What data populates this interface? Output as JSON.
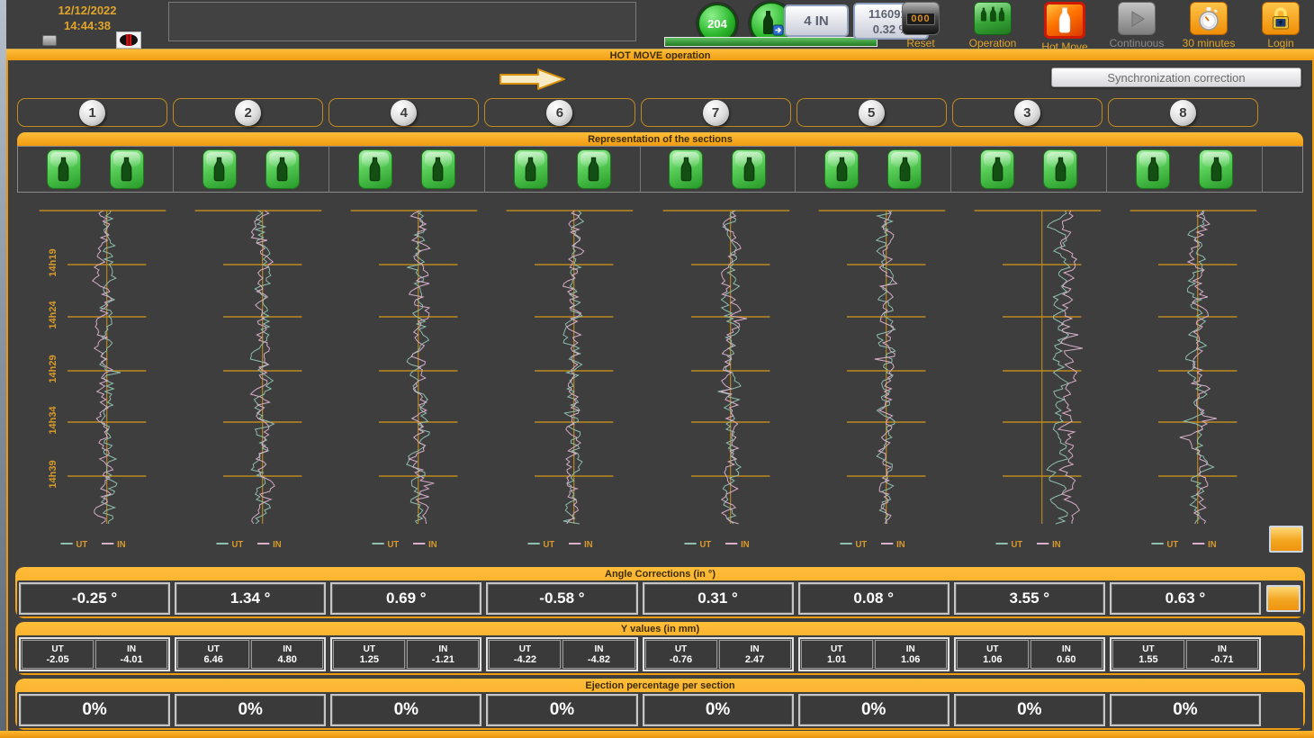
{
  "window_title": "HOT MOVE operation",
  "colors": {
    "orange": "#F2A41E",
    "grid_orange": "#BD8A1E",
    "teal_ut": "#8FBFAE",
    "pink_in": "#D9AECB",
    "label_orange": "#D89A2B"
  },
  "top_bar": {
    "date": "12/12/2022",
    "time": "14:44:38",
    "counter_badge": "204",
    "mode_button": "4 IN",
    "production_count": "1160919",
    "production_pct": "0.32 %",
    "progress_pct": 100,
    "buttons": [
      {
        "id": "reset",
        "label": "Reset",
        "icon": "reset-000-icon",
        "enabled": true
      },
      {
        "id": "operation",
        "label": "Operation",
        "icon": "bottles-icon",
        "enabled": true
      },
      {
        "id": "hot-move",
        "label": "Hot Move",
        "icon": "hot-bottle-icon",
        "enabled": true
      },
      {
        "id": "continuous",
        "label": "Continuous",
        "icon": "play-icon",
        "enabled": false
      },
      {
        "id": "30-minutes",
        "label": "30 minutes",
        "icon": "stopwatch-icon",
        "enabled": true
      },
      {
        "id": "login",
        "label": "Login",
        "icon": "padlock-icon",
        "enabled": true
      }
    ]
  },
  "controls": {
    "sync_button": "Synchronization correction"
  },
  "sections_order": [
    "1",
    "2",
    "4",
    "6",
    "7",
    "5",
    "3",
    "8"
  ],
  "representation": {
    "title": "Representation of the sections",
    "bottles_per_section": 2,
    "bottle_state": "green"
  },
  "charts": {
    "time_labels": [
      "14h19",
      "14h24",
      "14h29",
      "14h34",
      "14h39"
    ],
    "legend": [
      {
        "series": "UT",
        "color": "#8FBFAE"
      },
      {
        "series": "IN",
        "color": "#D9AECB"
      }
    ],
    "trace_offsets": [
      {
        "ut": 2,
        "in": -3
      },
      {
        "ut": 0,
        "in": 0
      },
      {
        "ut": 0,
        "in": 2
      },
      {
        "ut": 0,
        "in": 0
      },
      {
        "ut": 0,
        "in": 1
      },
      {
        "ut": 0,
        "in": 0
      },
      {
        "ut": 20,
        "in": 31
      },
      {
        "ut": 0,
        "in": 2
      }
    ]
  },
  "angle_corrections": {
    "title": "Angle Corrections (in °)",
    "values": [
      "-0.25 °",
      "1.34 °",
      "0.69 °",
      "-0.58 °",
      "0.31 °",
      "0.08 °",
      "3.55 °",
      "0.63 °"
    ]
  },
  "y_values": {
    "title": "Y values (in mm)",
    "labels": {
      "ut": "UT",
      "in": "IN"
    },
    "values": [
      {
        "ut": "-2.05",
        "in": "-4.01"
      },
      {
        "ut": "6.46",
        "in": "4.80"
      },
      {
        "ut": "1.25",
        "in": "-1.21"
      },
      {
        "ut": "-4.22",
        "in": "-4.82"
      },
      {
        "ut": "-0.76",
        "in": "2.47"
      },
      {
        "ut": "1.01",
        "in": "1.06"
      },
      {
        "ut": "1.06",
        "in": "0.60"
      },
      {
        "ut": "1.55",
        "in": "-0.71"
      }
    ]
  },
  "ejection": {
    "title": "Ejection percentage per section",
    "values": [
      "0%",
      "0%",
      "0%",
      "0%",
      "0%",
      "0%",
      "0%",
      "0%"
    ]
  }
}
